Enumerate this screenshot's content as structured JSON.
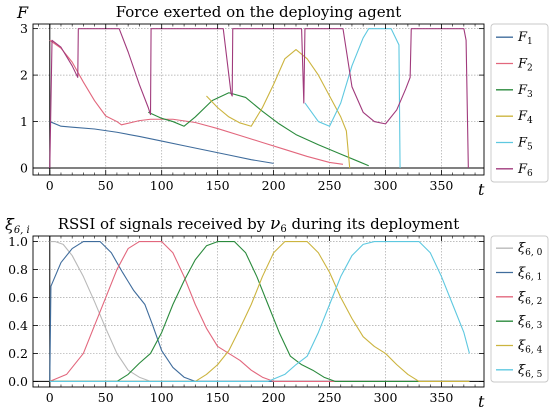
{
  "chart_data": [
    {
      "type": "line",
      "title": "Force exerted on the deploying agent",
      "ylabel": "F",
      "xlabel": "t",
      "xlim": [
        -15,
        388
      ],
      "ylim": [
        -0.15,
        3.1
      ],
      "x_ticks": [
        "0",
        "50",
        "100",
        "150",
        "200",
        "250",
        "300",
        "350"
      ],
      "y_ticks": [
        "0",
        "1",
        "2",
        "3"
      ],
      "grid": true,
      "legend_position": "right",
      "series": [
        {
          "name": "F1",
          "name_base": "F",
          "name_sub": "1",
          "color": "#3f6c9c",
          "points": [
            [
              0,
              1.0
            ],
            [
              10,
              0.9
            ],
            [
              20,
              0.88
            ],
            [
              40,
              0.84
            ],
            [
              60,
              0.77
            ],
            [
              80,
              0.68
            ],
            [
              100,
              0.58
            ],
            [
              120,
              0.48
            ],
            [
              140,
              0.38
            ],
            [
              160,
              0.28
            ],
            [
              180,
              0.18
            ],
            [
              200,
              0.1
            ]
          ]
        },
        {
          "name": "F2",
          "name_base": "F",
          "name_sub": "2",
          "color": "#e2677d",
          "points": [
            [
              0,
              2.75
            ],
            [
              10,
              2.58
            ],
            [
              20,
              2.28
            ],
            [
              30,
              1.85
            ],
            [
              40,
              1.45
            ],
            [
              50,
              1.12
            ],
            [
              60,
              1.0
            ],
            [
              64,
              0.93
            ],
            [
              80,
              1.02
            ],
            [
              90,
              1.05
            ],
            [
              110,
              1.05
            ],
            [
              130,
              0.98
            ],
            [
              150,
              0.85
            ],
            [
              170,
              0.7
            ],
            [
              190,
              0.55
            ],
            [
              210,
              0.4
            ],
            [
              230,
              0.25
            ],
            [
              250,
              0.12
            ],
            [
              262,
              0.08
            ]
          ]
        },
        {
          "name": "F3",
          "name_base": "F",
          "name_sub": "3",
          "color": "#2a8a3c",
          "points": [
            [
              88,
              1.2
            ],
            [
              100,
              1.07
            ],
            [
              110,
              1.0
            ],
            [
              120,
              0.9
            ],
            [
              130,
              1.1
            ],
            [
              145,
              1.45
            ],
            [
              160,
              1.62
            ],
            [
              175,
              1.52
            ],
            [
              190,
              1.22
            ],
            [
              205,
              0.95
            ],
            [
              220,
              0.72
            ],
            [
              240,
              0.5
            ],
            [
              260,
              0.3
            ],
            [
              275,
              0.15
            ],
            [
              285,
              0.05
            ]
          ]
        },
        {
          "name": "F4",
          "name_base": "F",
          "name_sub": "4",
          "color": "#ccb43f",
          "points": [
            [
              140,
              1.55
            ],
            [
              150,
              1.3
            ],
            [
              160,
              1.1
            ],
            [
              170,
              0.97
            ],
            [
              180,
              0.9
            ],
            [
              190,
              1.3
            ],
            [
              200,
              1.8
            ],
            [
              210,
              2.35
            ],
            [
              220,
              2.55
            ],
            [
              230,
              2.35
            ],
            [
              240,
              2.0
            ],
            [
              250,
              1.55
            ],
            [
              260,
              1.1
            ],
            [
              265,
              0.8
            ],
            [
              268,
              0.0
            ]
          ]
        },
        {
          "name": "F5",
          "name_base": "F",
          "name_sub": "5",
          "color": "#5ec8e0",
          "points": [
            [
              228,
              1.4
            ],
            [
              240,
              1.0
            ],
            [
              250,
              0.9
            ],
            [
              260,
              1.4
            ],
            [
              270,
              2.2
            ],
            [
              280,
              2.8
            ],
            [
              285,
              3.0
            ],
            [
              305,
              3.0
            ],
            [
              312,
              2.65
            ],
            [
              313,
              0.0
            ]
          ]
        },
        {
          "name": "F6",
          "name_base": "F",
          "name_sub": "6",
          "color": "#a03a7c",
          "points": [
            [
              0,
              0.0
            ],
            [
              2,
              2.75
            ],
            [
              10,
              2.6
            ],
            [
              20,
              2.2
            ],
            [
              25,
              1.95
            ],
            [
              25.5,
              3.0
            ],
            [
              62,
              3.0
            ],
            [
              70,
              2.5
            ],
            [
              80,
              1.8
            ],
            [
              88,
              1.3
            ],
            [
              90,
              1.15
            ],
            [
              90.5,
              3.0
            ],
            [
              155,
              3.0
            ],
            [
              162,
              1.6
            ],
            [
              163,
              1.55
            ],
            [
              163.5,
              3.0
            ],
            [
              225,
              3.0
            ],
            [
              227,
              1.4
            ],
            [
              228,
              3.0
            ],
            [
              262,
              3.0
            ],
            [
              270,
              1.75
            ],
            [
              280,
              1.2
            ],
            [
              290,
              1.0
            ],
            [
              300,
              0.95
            ],
            [
              310,
              1.25
            ],
            [
              318,
              1.7
            ],
            [
              322,
              1.95
            ],
            [
              323,
              3.0
            ],
            [
              370,
              3.0
            ],
            [
              372,
              2.75
            ],
            [
              374,
              0.0
            ]
          ]
        }
      ]
    },
    {
      "type": "line",
      "title_pre": "RSSI of signals received by ",
      "title_sym": "ν",
      "title_sub": "6",
      "title_post": " during its deployment",
      "ylabel": "ξ",
      "ylabel_sub": "6, i",
      "xlabel": "t",
      "xlim": [
        -15,
        388
      ],
      "ylim": [
        -0.04,
        1.04
      ],
      "x_ticks": [
        "0",
        "50",
        "100",
        "150",
        "200",
        "250",
        "300",
        "350"
      ],
      "y_ticks": [
        "0.0",
        "0.2",
        "0.4",
        "0.6",
        "0.8",
        "1.0"
      ],
      "grid": true,
      "legend_position": "right",
      "series": [
        {
          "name": "ξ6,0",
          "name_base": "ξ",
          "name_sub": "6, 0",
          "color": "#b9b9b9",
          "points": [
            [
              0,
              1.0
            ],
            [
              5,
              1.0
            ],
            [
              12,
              0.98
            ],
            [
              20,
              0.9
            ],
            [
              30,
              0.75
            ],
            [
              40,
              0.57
            ],
            [
              50,
              0.38
            ],
            [
              60,
              0.2
            ],
            [
              70,
              0.08
            ],
            [
              80,
              0.03
            ],
            [
              90,
              0.0
            ],
            [
              375,
              0.0
            ]
          ]
        },
        {
          "name": "ξ6,1",
          "name_base": "ξ",
          "name_sub": "6, 1",
          "color": "#3f6c9c",
          "points": [
            [
              0,
              0.0
            ],
            [
              1,
              0.68
            ],
            [
              10,
              0.85
            ],
            [
              20,
              0.95
            ],
            [
              30,
              1.0
            ],
            [
              45,
              1.0
            ],
            [
              55,
              0.92
            ],
            [
              65,
              0.78
            ],
            [
              75,
              0.65
            ],
            [
              85,
              0.55
            ],
            [
              92,
              0.4
            ],
            [
              100,
              0.22
            ],
            [
              110,
              0.1
            ],
            [
              120,
              0.03
            ],
            [
              130,
              0.0
            ],
            [
              375,
              0.0
            ]
          ]
        },
        {
          "name": "ξ6,2",
          "name_base": "ξ",
          "name_sub": "6, 2",
          "color": "#e2677d",
          "points": [
            [
              0,
              0.0
            ],
            [
              15,
              0.05
            ],
            [
              30,
              0.2
            ],
            [
              40,
              0.4
            ],
            [
              50,
              0.6
            ],
            [
              60,
              0.8
            ],
            [
              70,
              0.95
            ],
            [
              80,
              1.0
            ],
            [
              100,
              1.0
            ],
            [
              110,
              0.92
            ],
            [
              120,
              0.75
            ],
            [
              130,
              0.55
            ],
            [
              140,
              0.38
            ],
            [
              150,
              0.25
            ],
            [
              160,
              0.2
            ],
            [
              170,
              0.15
            ],
            [
              180,
              0.08
            ],
            [
              190,
              0.03
            ],
            [
              200,
              0.0
            ],
            [
              375,
              0.0
            ]
          ]
        },
        {
          "name": "ξ6,3",
          "name_base": "ξ",
          "name_sub": "6, 3",
          "color": "#2a8a3c",
          "points": [
            [
              0,
              0.0
            ],
            [
              60,
              0.0
            ],
            [
              70,
              0.05
            ],
            [
              80,
              0.13
            ],
            [
              90,
              0.2
            ],
            [
              100,
              0.35
            ],
            [
              110,
              0.55
            ],
            [
              120,
              0.72
            ],
            [
              130,
              0.87
            ],
            [
              140,
              0.97
            ],
            [
              150,
              1.0
            ],
            [
              165,
              1.0
            ],
            [
              175,
              0.92
            ],
            [
              185,
              0.75
            ],
            [
              195,
              0.55
            ],
            [
              205,
              0.35
            ],
            [
              215,
              0.18
            ],
            [
              225,
              0.12
            ],
            [
              235,
              0.08
            ],
            [
              245,
              0.03
            ],
            [
              255,
              0.0
            ],
            [
              375,
              0.0
            ]
          ]
        },
        {
          "name": "ξ6,4",
          "name_base": "ξ",
          "name_sub": "6, 4",
          "color": "#ccb43f",
          "points": [
            [
              0,
              0.0
            ],
            [
              130,
              0.0
            ],
            [
              140,
              0.05
            ],
            [
              150,
              0.12
            ],
            [
              160,
              0.22
            ],
            [
              170,
              0.38
            ],
            [
              180,
              0.55
            ],
            [
              190,
              0.75
            ],
            [
              200,
              0.92
            ],
            [
              210,
              1.0
            ],
            [
              230,
              1.0
            ],
            [
              240,
              0.92
            ],
            [
              250,
              0.78
            ],
            [
              260,
              0.6
            ],
            [
              270,
              0.45
            ],
            [
              280,
              0.32
            ],
            [
              290,
              0.25
            ],
            [
              300,
              0.2
            ],
            [
              310,
              0.12
            ],
            [
              320,
              0.05
            ],
            [
              330,
              0.0
            ],
            [
              375,
              0.0
            ]
          ]
        },
        {
          "name": "ξ6,5",
          "name_base": "ξ",
          "name_sub": "6, 5",
          "color": "#5ec8e0",
          "points": [
            [
              0,
              0.0
            ],
            [
              195,
              0.0
            ],
            [
              210,
              0.05
            ],
            [
              220,
              0.12
            ],
            [
              230,
              0.18
            ],
            [
              240,
              0.35
            ],
            [
              250,
              0.55
            ],
            [
              260,
              0.75
            ],
            [
              270,
              0.9
            ],
            [
              280,
              0.98
            ],
            [
              290,
              1.0
            ],
            [
              330,
              1.0
            ],
            [
              340,
              0.92
            ],
            [
              350,
              0.75
            ],
            [
              360,
              0.55
            ],
            [
              370,
              0.35
            ],
            [
              375,
              0.2
            ]
          ]
        }
      ]
    }
  ]
}
